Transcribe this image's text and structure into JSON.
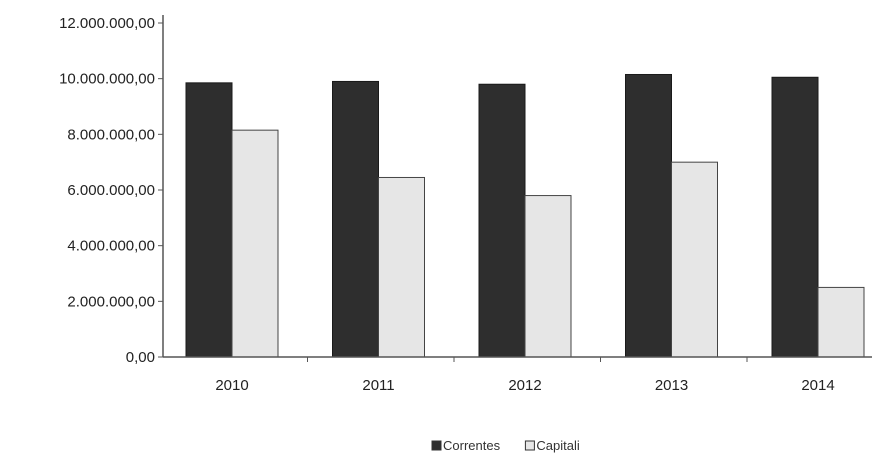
{
  "chart_data": {
    "type": "bar",
    "categories": [
      "2010",
      "2011",
      "2012",
      "2013",
      "2014"
    ],
    "series": [
      {
        "name": "Correntes",
        "values": [
          9850000,
          9900000,
          9800000,
          10150000,
          10050000
        ],
        "color": "#2e2e2e"
      },
      {
        "name": "Capitali",
        "values": [
          8150000,
          6450000,
          5800000,
          7000000,
          2500000
        ],
        "color": "#e6e6e6"
      }
    ],
    "y_ticks": [
      "0,00",
      "2.000.000,00",
      "4.000.000,00",
      "6.000.000,00",
      "8.000.000,00",
      "10.000.000,00",
      "12.000.000,00"
    ],
    "ylim": [
      0,
      12000000
    ],
    "grid": false,
    "legend_position": "bottom-center"
  }
}
